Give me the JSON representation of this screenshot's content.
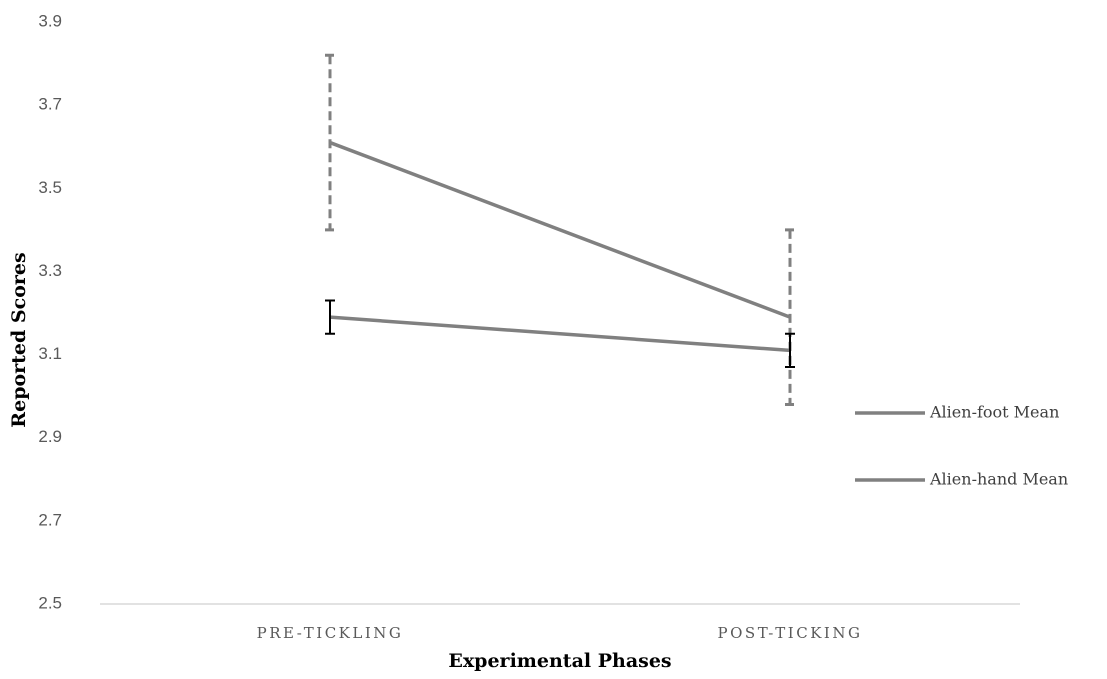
{
  "chart_data": {
    "type": "line",
    "x_label": "Experimental Phases",
    "y_label": "Reported Scores",
    "categories": [
      "PRE-TICKLING",
      "POST-TICKING"
    ],
    "series": [
      {
        "name": "Alien-foot Mean",
        "color": "#808080",
        "values": [
          3.61,
          3.19
        ],
        "errors": [
          0.21,
          0.21
        ],
        "error_color": "#808080",
        "error_dashed": true
      },
      {
        "name": "Alien-hand Mean",
        "color": "#808080",
        "values": [
          3.19,
          3.11
        ],
        "errors": [
          0.04,
          0.04
        ],
        "error_color": "#000000",
        "error_dashed": false
      }
    ],
    "ylim": [
      2.5,
      3.9
    ],
    "yticks": [
      2.5,
      2.7,
      2.9,
      3.1,
      3.3,
      3.5,
      3.7,
      3.9
    ],
    "grid": false,
    "legend": "right"
  }
}
